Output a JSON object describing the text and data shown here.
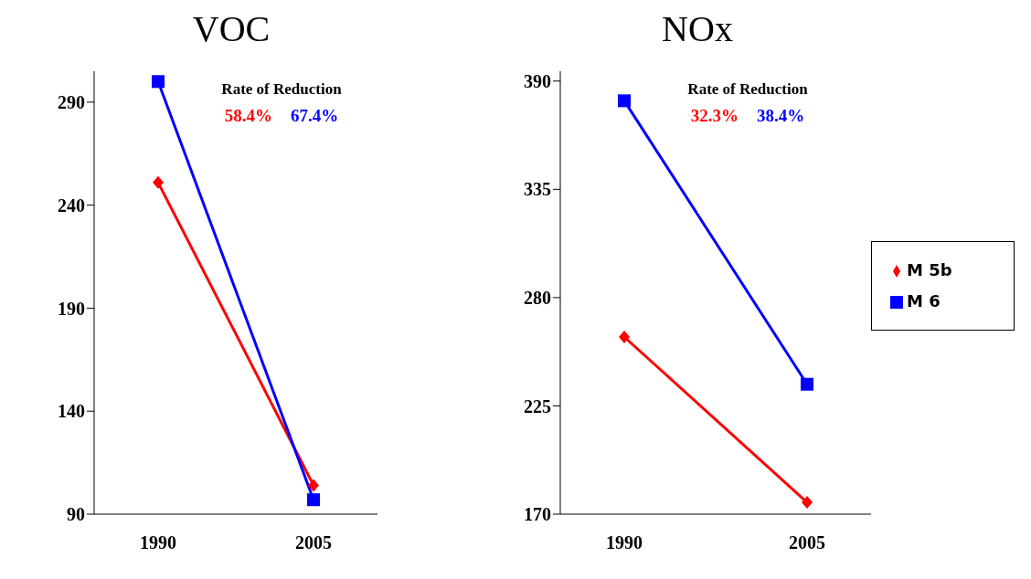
{
  "chart_data": [
    {
      "type": "line",
      "title": "VOC",
      "categories": [
        "1990",
        "2005"
      ],
      "series": [
        {
          "color": "#ff0000",
          "marker": "diamond",
          "values": [
            251,
            104
          ]
        },
        {
          "color": "#0000ff",
          "marker": "square",
          "values": [
            300,
            97
          ]
        }
      ],
      "ylim": [
        90,
        305
      ],
      "yticks": [
        90,
        140,
        190,
        240,
        290
      ],
      "grid": false,
      "legend": false,
      "annotations": [
        "Rate of Reduction",
        "58.4%",
        "67.4%"
      ]
    },
    {
      "type": "line",
      "title": "NOx",
      "categories": [
        "1990",
        "2005"
      ],
      "series": [
        {
          "name": "M 5b",
          "color": "#ff0000",
          "marker": "diamond",
          "values": [
            260,
            176
          ]
        },
        {
          "name": "M 6",
          "color": "#0000ff",
          "marker": "square",
          "values": [
            380,
            236
          ]
        }
      ],
      "ylim": [
        170,
        395
      ],
      "yticks": [
        170,
        225,
        280,
        335,
        390
      ],
      "grid": false,
      "legend": "right",
      "annotations": [
        "Rate of Reduction",
        "32.3%",
        "38.4%"
      ]
    }
  ]
}
